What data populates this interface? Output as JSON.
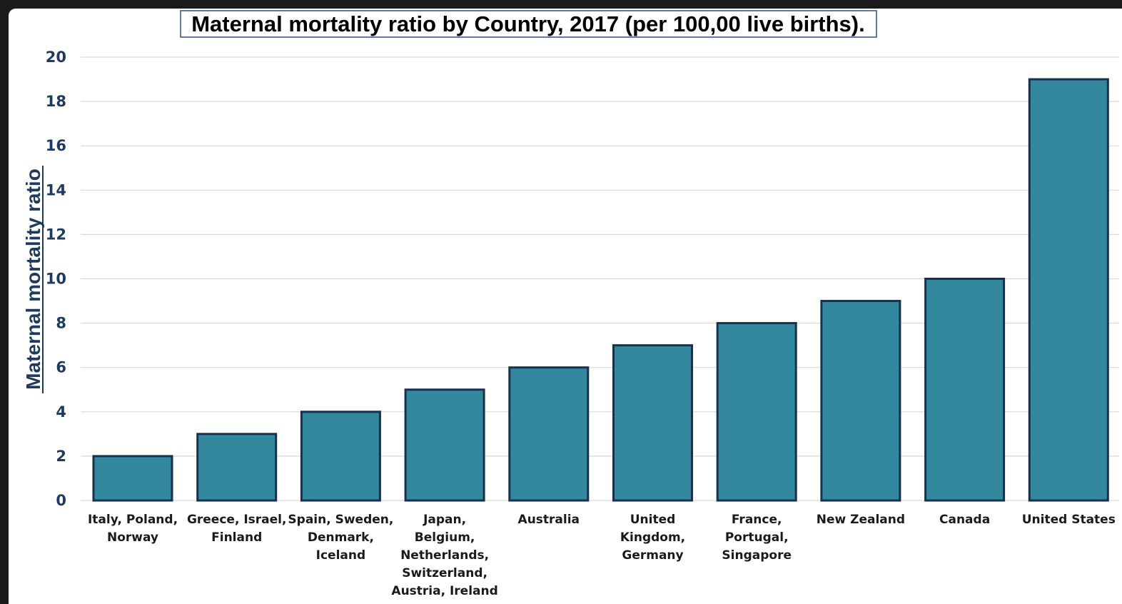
{
  "chart_data": {
    "type": "bar",
    "title": "Maternal mortality ratio by Country, 2017 (per 100,00 live births).",
    "ylabel": "Maternal mortality ratio",
    "xlabel": "",
    "ylim": [
      0,
      20
    ],
    "yticks": [
      0,
      2,
      4,
      6,
      8,
      10,
      12,
      14,
      16,
      18,
      20
    ],
    "grid": true,
    "categories": [
      [
        "Italy, Poland,",
        "Norway"
      ],
      [
        "Greece, Israel,",
        "Finland"
      ],
      [
        "Spain, Sweden,",
        "Denmark,",
        "Iceland"
      ],
      [
        "Japan,",
        "Belgium,",
        "Netherlands,",
        "Switzerland,",
        "Austria, Ireland"
      ],
      [
        "Australia"
      ],
      [
        "United",
        "Kingdom,",
        "Germany"
      ],
      [
        "France,",
        "Portugal,",
        "Singapore"
      ],
      [
        "New Zealand"
      ],
      [
        "Canada"
      ],
      [
        "United States"
      ]
    ],
    "values": [
      2,
      3,
      4,
      5,
      6,
      7,
      8,
      9,
      10,
      19
    ],
    "colors": {
      "bar_fill": "#34889e",
      "bar_stroke": "#16304f",
      "grid": "#d9d9d9",
      "axis_text": "#1f3a5f",
      "title_box": "#2f4f7f"
    }
  }
}
